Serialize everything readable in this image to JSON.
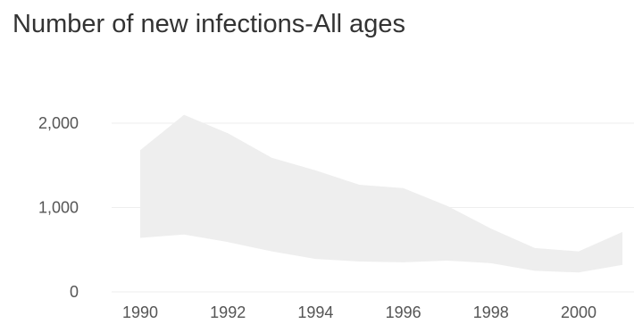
{
  "chart_data": {
    "type": "area",
    "title": "Number of new infections-All ages",
    "xlabel": "",
    "ylabel": "",
    "x": [
      1990,
      1991,
      1992,
      1993,
      1994,
      1995,
      1996,
      1997,
      1998,
      1999,
      2000,
      2001
    ],
    "series": [
      {
        "kind": "uncertainty-band",
        "lower": [
          640,
          680,
          590,
          480,
          390,
          360,
          350,
          370,
          340,
          250,
          230,
          320
        ],
        "upper": [
          1680,
          2100,
          1880,
          1590,
          1440,
          1270,
          1230,
          1020,
          750,
          520,
          480,
          710
        ]
      }
    ],
    "x_ticks": [
      "1990",
      "1992",
      "1994",
      "1996",
      "1998",
      "2000"
    ],
    "y_ticks": [
      "0",
      "1,000",
      "2,000"
    ],
    "ylim": [
      0,
      2500
    ],
    "grid": true,
    "band_color": "#eeeeee",
    "gridline_color": "#eeeeee"
  }
}
